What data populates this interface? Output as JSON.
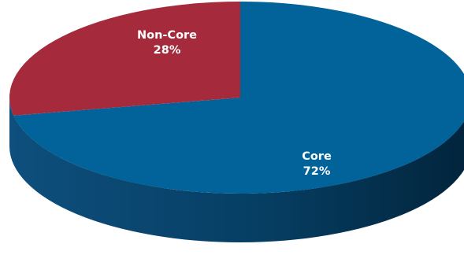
{
  "chart_data": {
    "type": "pie",
    "title": "",
    "slices": [
      {
        "name": "Core",
        "label": "Core",
        "percent_label": "72%",
        "value": 72,
        "color": "#02629A"
      },
      {
        "name": "Non-Core",
        "label": "Non-Core",
        "percent_label": "28%",
        "value": 28,
        "color": "#A52B3C"
      }
    ],
    "three_d": true,
    "legend": "none"
  }
}
